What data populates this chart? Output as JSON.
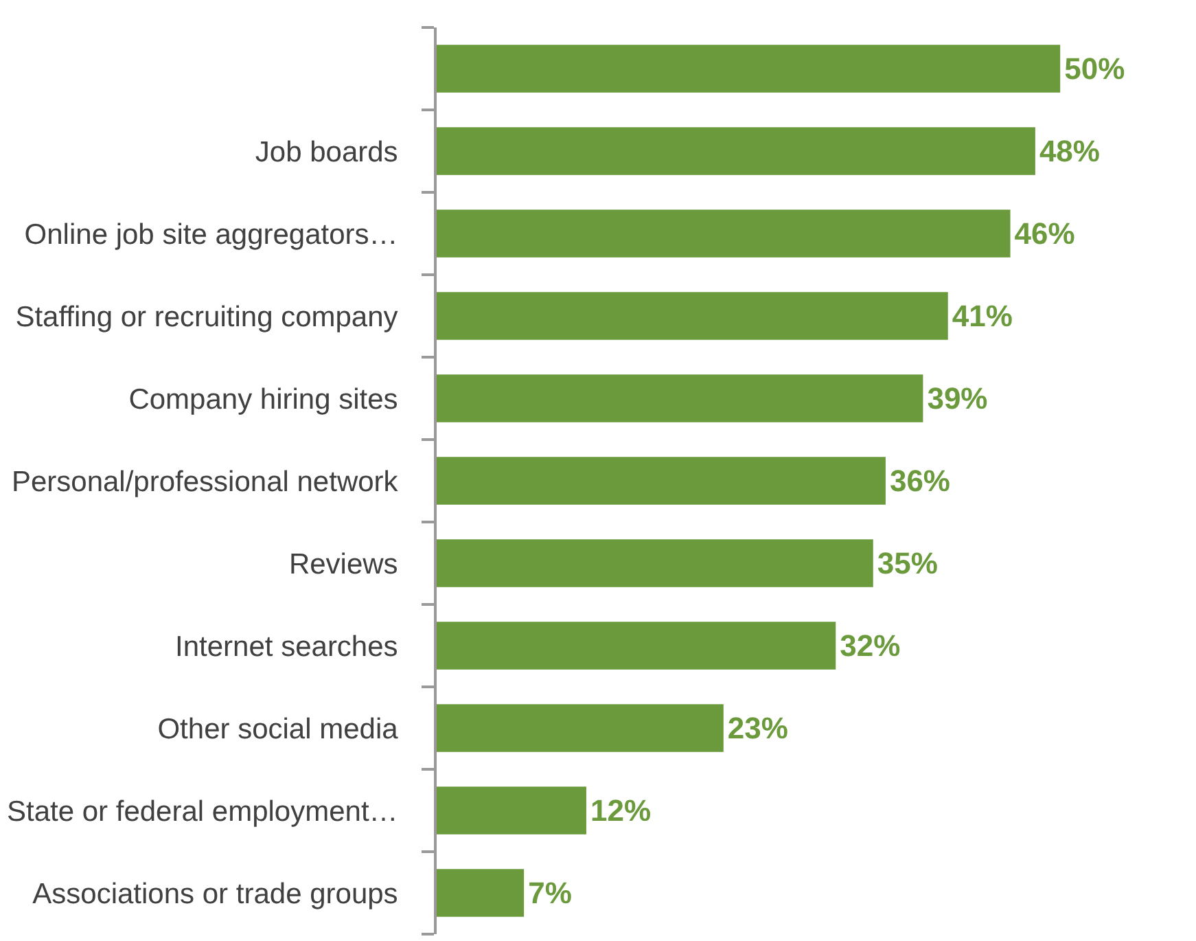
{
  "chart_data": {
    "type": "bar",
    "orientation": "horizontal",
    "categories": [
      null,
      "Job boards",
      "Online job site aggregators…",
      "Staffing or recruiting company",
      "Company hiring sites",
      "Personal/professional network",
      "Reviews",
      "Internet searches",
      "Other social media",
      "State or federal employment…",
      "Associations or trade groups"
    ],
    "values": [
      50,
      48,
      46,
      41,
      39,
      36,
      35,
      32,
      23,
      12,
      7
    ],
    "value_labels": [
      "50%",
      "48%",
      "46%",
      "41%",
      "39%",
      "36%",
      "35%",
      "32%",
      "23%",
      "12%",
      "7%"
    ],
    "color": "#6a9a3c"
  }
}
